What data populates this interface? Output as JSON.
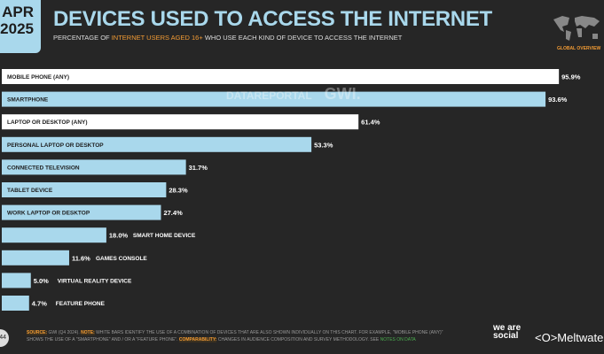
{
  "header": {
    "date_month": "APR",
    "date_year": "2025",
    "title": "DEVICES USED TO ACCESS THE INTERNET",
    "subtitle_pre": "PERCENTAGE OF ",
    "subtitle_highlight": "INTERNET USERS AGED 16+",
    "subtitle_post": " WHO USE EACH KIND OF DEVICE TO ACCESS THE INTERNET",
    "badge": "GLOBAL OVERVIEW"
  },
  "watermark": {
    "left": "DATAREPORTAL",
    "right": "GWI."
  },
  "chart_data": {
    "type": "bar",
    "orientation": "horizontal",
    "title": "DEVICES USED TO ACCESS THE INTERNET",
    "xlabel": "",
    "ylabel": "",
    "xlim": [
      0,
      100
    ],
    "unit": "%",
    "categories": [
      "MOBILE PHONE (ANY)",
      "SMARTPHONE",
      "LAPTOP OR DESKTOP (ANY)",
      "PERSONAL LAPTOP OR DESKTOP",
      "CONNECTED TELEVISION",
      "TABLET DEVICE",
      "WORK LAPTOP OR DESKTOP",
      "SMART HOME DEVICE",
      "GAMES CONSOLE",
      "VIRTUAL REALITY DEVICE",
      "FEATURE PHONE"
    ],
    "values": [
      95.9,
      93.6,
      61.4,
      53.3,
      31.7,
      28.3,
      27.4,
      18.0,
      11.6,
      5.0,
      4.7
    ],
    "value_labels": [
      "95.9%",
      "93.6%",
      "61.4%",
      "53.3%",
      "31.7%",
      "28.3%",
      "27.4%",
      "18.0%",
      "11.6%",
      "5.0%",
      "4.7%"
    ],
    "combined": [
      true,
      false,
      true,
      false,
      false,
      false,
      false,
      false,
      false,
      false,
      false
    ],
    "colors": {
      "combined": "#ffffff",
      "individual": "#a9d8ec",
      "background": "#262626"
    }
  },
  "footer": {
    "page": "44",
    "source_label": "SOURCE:",
    "source_text": " GWI (Q4 2024). ",
    "note_label": "NOTE:",
    "note_text": " WHITE BARS IDENTIFY THE USE OF A COMBINATION OF DEVICES THAT ARE ALSO SHOWN INDIVIDUALLY ON THIS CHART. FOR EXAMPLE, \"MOBILE PHONE (ANY)\" SHOWS THE USE OF A \"SMARTPHONE\" AND / OR A \"FEATURE PHONE\". ",
    "comp_label": "COMPARABILITY:",
    "comp_text": " CHANGES IN AUDIENCE COMPOSITION AND SURVEY METHODOLOGY. SEE ",
    "notes_link": "NOTES ON DATA",
    "brand1": "we are social",
    "brand2": "Meltwater"
  }
}
